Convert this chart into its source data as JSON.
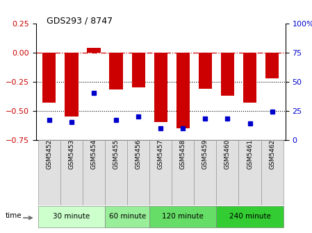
{
  "title": "GDS293 / 8747",
  "samples": [
    "GSM5452",
    "GSM5453",
    "GSM5454",
    "GSM5455",
    "GSM5456",
    "GSM5457",
    "GSM5458",
    "GSM5459",
    "GSM5460",
    "GSM5461",
    "GSM5462"
  ],
  "log_ratio": [
    -0.43,
    -0.55,
    0.04,
    -0.32,
    -0.3,
    -0.6,
    -0.65,
    -0.31,
    -0.37,
    -0.43,
    -0.22
  ],
  "percentile": [
    17,
    15,
    40,
    17,
    20,
    10,
    10,
    18,
    18,
    14,
    24
  ],
  "groups": [
    {
      "label": "30 minute",
      "start": 0,
      "end": 2,
      "color": "#ccffcc"
    },
    {
      "label": "60 minute",
      "start": 3,
      "end": 4,
      "color": "#99ee99"
    },
    {
      "label": "120 minute",
      "start": 5,
      "end": 7,
      "color": "#66dd66"
    },
    {
      "label": "240 minute",
      "start": 8,
      "end": 10,
      "color": "#33cc33"
    }
  ],
  "bar_color": "#cc0000",
  "dot_color": "#0000cc",
  "ylim_left": [
    -0.75,
    0.25
  ],
  "ylim_right": [
    0,
    100
  ],
  "hline_y": 0,
  "dotted_lines": [
    -0.25,
    -0.5
  ],
  "left_yticks": [
    -0.75,
    -0.5,
    -0.25,
    0,
    0.25
  ],
  "right_yticks": [
    0,
    25,
    50,
    75,
    100
  ],
  "background_color": "#ffffff",
  "bar_width": 0.6
}
